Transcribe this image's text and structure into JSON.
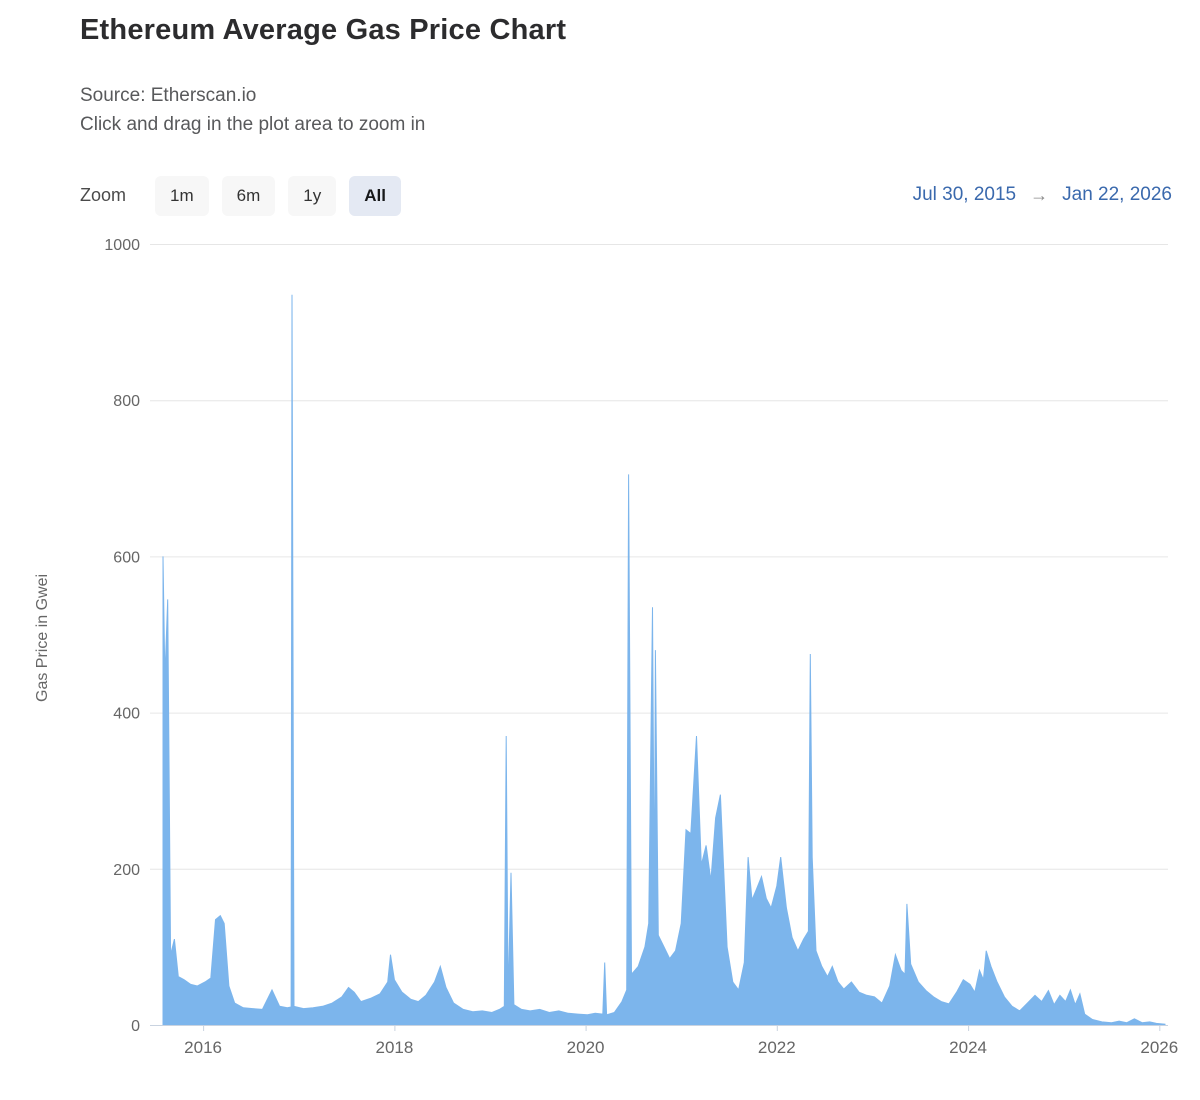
{
  "header": {
    "title": "Ethereum Average Gas Price Chart",
    "source": "Source: Etherscan.io",
    "hint": "Click and drag in the plot area to zoom in"
  },
  "toolbar": {
    "zoom_label": "Zoom",
    "buttons": [
      {
        "label": "1m",
        "selected": false
      },
      {
        "label": "6m",
        "selected": false
      },
      {
        "label": "1y",
        "selected": false
      },
      {
        "label": "All",
        "selected": true
      }
    ]
  },
  "range": {
    "from": "Jul 30, 2015",
    "arrow": "→",
    "to": "Jan 22, 2026"
  },
  "colors": {
    "series": "#7cb5ec",
    "grid": "#e6e6e6",
    "axis_line": "#c9d3e0",
    "tick_text": "#666666",
    "range_text": "#3a69ad",
    "button_bg": "#f7f7f7",
    "button_selected_bg": "#e4e9f3"
  },
  "chart_data": {
    "type": "area",
    "title": "Ethereum Average Gas Price Chart",
    "subtitle": "Source: Etherscan.io",
    "xlabel": "",
    "ylabel": "Gas Price in Gwei",
    "xlim": [
      2015.57,
      2026.07
    ],
    "ylim": [
      0,
      1000
    ],
    "yticks": [
      0,
      200,
      400,
      600,
      800,
      1000
    ],
    "xticks": [
      2016,
      2018,
      2020,
      2022,
      2024,
      2026
    ],
    "grid": true,
    "legend": false,
    "x_unit": "decimal_year",
    "y_unit": "gwei",
    "series": [
      {
        "name": "Gas Price in Gwei",
        "color": "#7cb5ec",
        "points": [
          [
            2015.58,
            600
          ],
          [
            2015.6,
            445
          ],
          [
            2015.63,
            545
          ],
          [
            2015.66,
            90
          ],
          [
            2015.7,
            110
          ],
          [
            2015.74,
            62
          ],
          [
            2015.8,
            58
          ],
          [
            2015.87,
            52
          ],
          [
            2015.94,
            50
          ],
          [
            2016.02,
            55
          ],
          [
            2016.08,
            60
          ],
          [
            2016.13,
            135
          ],
          [
            2016.18,
            140
          ],
          [
            2016.22,
            130
          ],
          [
            2016.27,
            50
          ],
          [
            2016.33,
            28
          ],
          [
            2016.42,
            22
          ],
          [
            2016.52,
            21
          ],
          [
            2016.62,
            20
          ],
          [
            2016.72,
            45
          ],
          [
            2016.8,
            24
          ],
          [
            2016.88,
            22
          ],
          [
            2016.92,
            23
          ],
          [
            2016.93,
            935
          ],
          [
            2016.95,
            24
          ],
          [
            2017.05,
            21
          ],
          [
            2017.15,
            22
          ],
          [
            2017.25,
            24
          ],
          [
            2017.35,
            28
          ],
          [
            2017.45,
            36
          ],
          [
            2017.52,
            48
          ],
          [
            2017.58,
            42
          ],
          [
            2017.65,
            30
          ],
          [
            2017.75,
            34
          ],
          [
            2017.85,
            40
          ],
          [
            2017.93,
            55
          ],
          [
            2017.96,
            90
          ],
          [
            2018.0,
            58
          ],
          [
            2018.08,
            42
          ],
          [
            2018.17,
            33
          ],
          [
            2018.25,
            30
          ],
          [
            2018.33,
            38
          ],
          [
            2018.42,
            55
          ],
          [
            2018.48,
            75
          ],
          [
            2018.54,
            48
          ],
          [
            2018.62,
            28
          ],
          [
            2018.72,
            20
          ],
          [
            2018.82,
            17
          ],
          [
            2018.92,
            18
          ],
          [
            2019.02,
            16
          ],
          [
            2019.1,
            20
          ],
          [
            2019.15,
            24
          ],
          [
            2019.17,
            370
          ],
          [
            2019.19,
            35
          ],
          [
            2019.22,
            195
          ],
          [
            2019.25,
            26
          ],
          [
            2019.33,
            20
          ],
          [
            2019.42,
            18
          ],
          [
            2019.52,
            20
          ],
          [
            2019.62,
            16
          ],
          [
            2019.72,
            18
          ],
          [
            2019.82,
            15
          ],
          [
            2019.92,
            14
          ],
          [
            2020.02,
            13
          ],
          [
            2020.1,
            15
          ],
          [
            2020.18,
            14
          ],
          [
            2020.2,
            80
          ],
          [
            2020.22,
            13
          ],
          [
            2020.3,
            16
          ],
          [
            2020.38,
            30
          ],
          [
            2020.43,
            45
          ],
          [
            2020.45,
            705
          ],
          [
            2020.48,
            65
          ],
          [
            2020.55,
            75
          ],
          [
            2020.62,
            100
          ],
          [
            2020.66,
            130
          ],
          [
            2020.7,
            535
          ],
          [
            2020.72,
            150
          ],
          [
            2020.73,
            480
          ],
          [
            2020.76,
            115
          ],
          [
            2020.82,
            100
          ],
          [
            2020.88,
            85
          ],
          [
            2020.94,
            95
          ],
          [
            2021.0,
            130
          ],
          [
            2021.05,
            250
          ],
          [
            2021.1,
            245
          ],
          [
            2021.16,
            370
          ],
          [
            2021.21,
            205
          ],
          [
            2021.26,
            230
          ],
          [
            2021.31,
            185
          ],
          [
            2021.36,
            265
          ],
          [
            2021.41,
            295
          ],
          [
            2021.48,
            100
          ],
          [
            2021.54,
            55
          ],
          [
            2021.6,
            45
          ],
          [
            2021.66,
            80
          ],
          [
            2021.7,
            215
          ],
          [
            2021.74,
            160
          ],
          [
            2021.79,
            175
          ],
          [
            2021.84,
            190
          ],
          [
            2021.89,
            162
          ],
          [
            2021.94,
            150
          ],
          [
            2022.0,
            178
          ],
          [
            2022.04,
            215
          ],
          [
            2022.1,
            150
          ],
          [
            2022.16,
            112
          ],
          [
            2022.22,
            95
          ],
          [
            2022.28,
            110
          ],
          [
            2022.33,
            120
          ],
          [
            2022.35,
            475
          ],
          [
            2022.37,
            215
          ],
          [
            2022.41,
            95
          ],
          [
            2022.47,
            75
          ],
          [
            2022.53,
            62
          ],
          [
            2022.58,
            75
          ],
          [
            2022.64,
            55
          ],
          [
            2022.7,
            46
          ],
          [
            2022.78,
            55
          ],
          [
            2022.86,
            42
          ],
          [
            2022.94,
            38
          ],
          [
            2023.02,
            36
          ],
          [
            2023.1,
            28
          ],
          [
            2023.18,
            50
          ],
          [
            2023.24,
            90
          ],
          [
            2023.3,
            70
          ],
          [
            2023.34,
            65
          ],
          [
            2023.36,
            155
          ],
          [
            2023.4,
            78
          ],
          [
            2023.48,
            55
          ],
          [
            2023.56,
            44
          ],
          [
            2023.64,
            36
          ],
          [
            2023.72,
            30
          ],
          [
            2023.8,
            27
          ],
          [
            2023.88,
            42
          ],
          [
            2023.95,
            58
          ],
          [
            2024.02,
            52
          ],
          [
            2024.07,
            42
          ],
          [
            2024.12,
            70
          ],
          [
            2024.16,
            58
          ],
          [
            2024.19,
            95
          ],
          [
            2024.24,
            75
          ],
          [
            2024.3,
            56
          ],
          [
            2024.38,
            36
          ],
          [
            2024.46,
            24
          ],
          [
            2024.54,
            18
          ],
          [
            2024.62,
            28
          ],
          [
            2024.7,
            38
          ],
          [
            2024.77,
            30
          ],
          [
            2024.84,
            44
          ],
          [
            2024.9,
            26
          ],
          [
            2024.96,
            38
          ],
          [
            2025.02,
            30
          ],
          [
            2025.07,
            45
          ],
          [
            2025.12,
            26
          ],
          [
            2025.17,
            40
          ],
          [
            2025.22,
            14
          ],
          [
            2025.3,
            7
          ],
          [
            2025.4,
            4
          ],
          [
            2025.5,
            3
          ],
          [
            2025.58,
            5
          ],
          [
            2025.66,
            3
          ],
          [
            2025.74,
            8
          ],
          [
            2025.82,
            3
          ],
          [
            2025.9,
            4
          ],
          [
            2025.97,
            2
          ],
          [
            2026.06,
            1
          ]
        ]
      }
    ]
  }
}
